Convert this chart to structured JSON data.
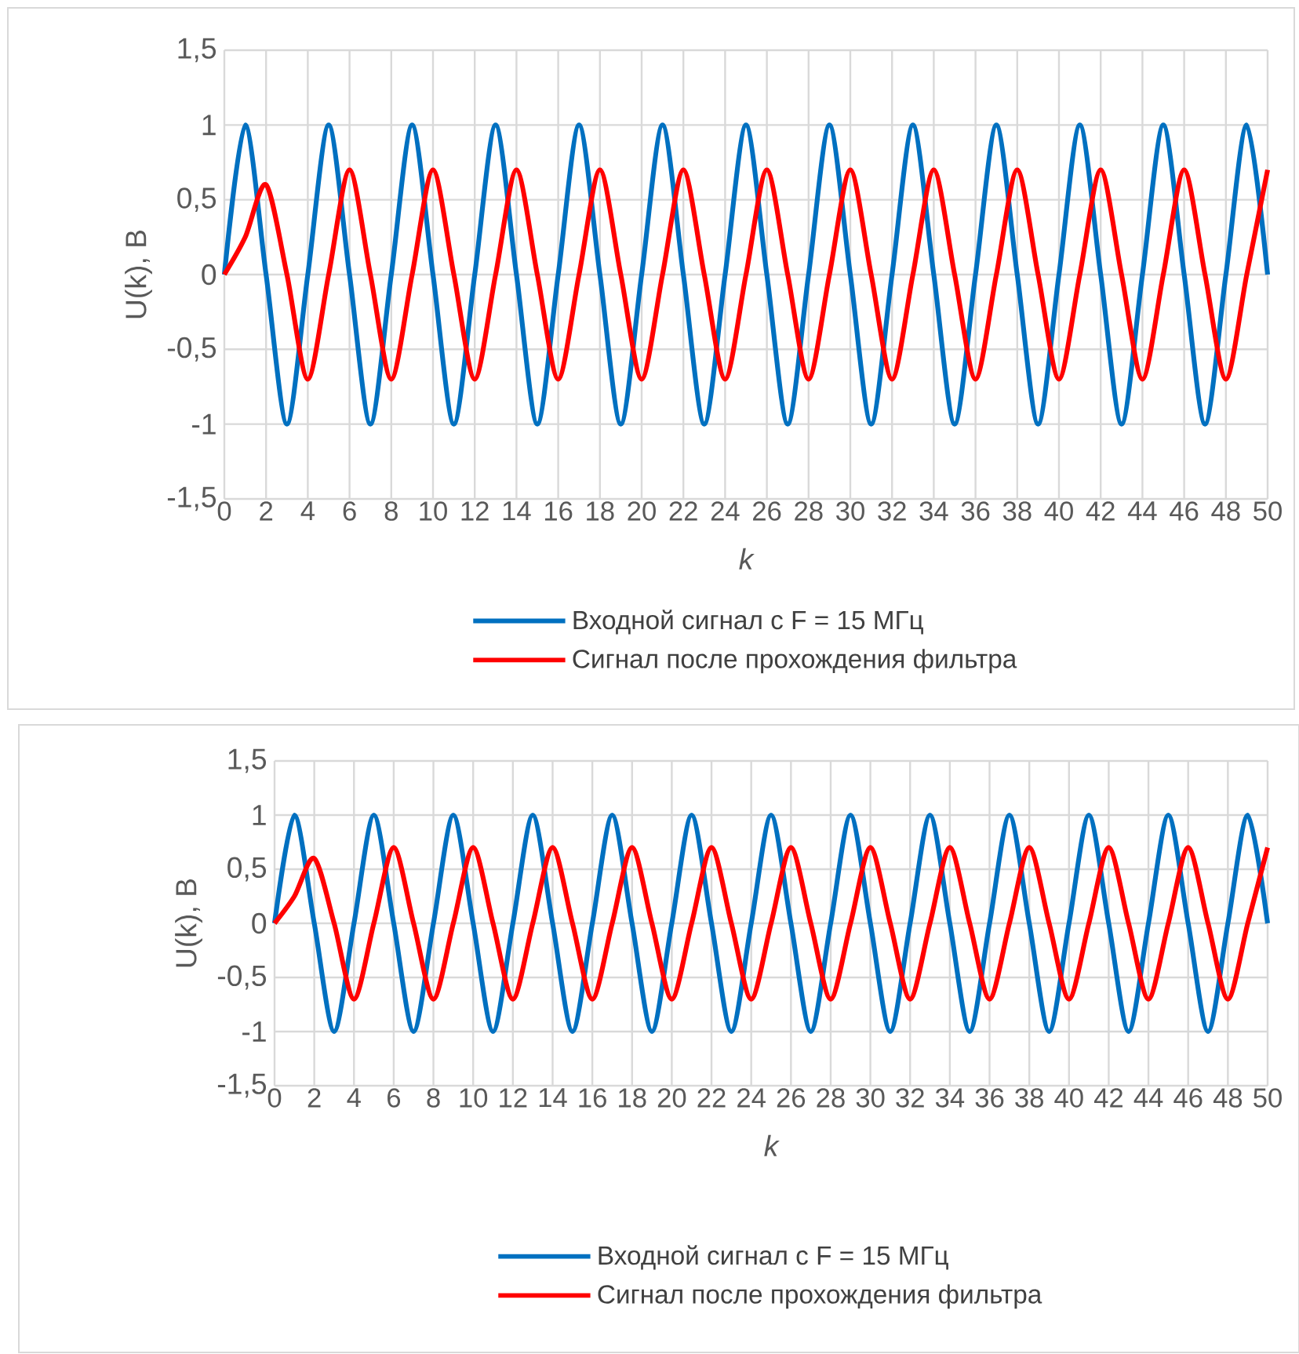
{
  "chart_data": [
    {
      "type": "line",
      "xlabel": "k",
      "ylabel": "U(k), В",
      "legend": "bottom",
      "grid": true,
      "line_style": "solid",
      "marker": "none",
      "x": [
        0,
        1,
        2,
        3,
        4,
        5,
        6,
        7,
        8,
        9,
        10,
        11,
        12,
        13,
        14,
        15,
        16,
        17,
        18,
        19,
        20,
        21,
        22,
        23,
        24,
        25,
        26,
        27,
        28,
        29,
        30,
        31,
        32,
        33,
        34,
        35,
        36,
        37,
        38,
        39,
        40,
        41,
        42,
        43,
        44,
        45,
        46,
        47,
        48,
        49,
        50
      ],
      "xlim": [
        0,
        50
      ],
      "xticks": [
        0,
        2,
        4,
        6,
        8,
        10,
        12,
        14,
        16,
        18,
        20,
        22,
        24,
        26,
        28,
        30,
        32,
        34,
        36,
        38,
        40,
        42,
        44,
        46,
        48,
        50
      ],
      "ylim": [
        -1.5,
        1.5
      ],
      "yticks": [
        {
          "value": -1.5,
          "label": "-1,5"
        },
        -1,
        {
          "value": -0.5,
          "label": "-0,5"
        },
        0,
        {
          "value": 0.5,
          "label": "0,5"
        },
        1,
        {
          "value": 1.5,
          "label": "1,5"
        }
      ],
      "series": [
        {
          "name": "Входной сигнал с F = 15 МГц",
          "color": "#0070c0",
          "values": [
            0,
            1,
            0,
            -1,
            0,
            1,
            0,
            -1,
            0,
            1,
            0,
            -1,
            0,
            1,
            0,
            -1,
            0,
            1,
            0,
            -1,
            0,
            1,
            0,
            -1,
            0,
            1,
            0,
            -1,
            0,
            1,
            0,
            -1,
            0,
            1,
            0,
            -1,
            0,
            1,
            0,
            -1,
            0,
            1,
            0,
            -1,
            0,
            1,
            0,
            -1,
            0,
            1,
            0
          ]
        },
        {
          "name": "Сигнал после прохождения фильтра",
          "color": "#ff0000",
          "values": [
            0,
            0.25,
            0.6,
            0,
            -0.7,
            0,
            0.7,
            0,
            -0.7,
            0,
            0.7,
            0,
            -0.7,
            0,
            0.7,
            0,
            -0.7,
            0,
            0.7,
            0,
            -0.7,
            0,
            0.7,
            0,
            -0.7,
            0,
            0.7,
            0,
            -0.7,
            0,
            0.7,
            0,
            -0.7,
            0,
            0.7,
            0,
            -0.7,
            0,
            0.7,
            0,
            -0.7,
            0,
            0.7,
            0,
            -0.7,
            0,
            0.7,
            0,
            -0.7,
            0,
            0.7
          ]
        }
      ]
    },
    {
      "type": "line",
      "xlabel": "k",
      "ylabel": "U(k), В",
      "legend": "bottom",
      "grid": true,
      "line_style": "solid",
      "marker": "none",
      "x": [
        0,
        1,
        2,
        3,
        4,
        5,
        6,
        7,
        8,
        9,
        10,
        11,
        12,
        13,
        14,
        15,
        16,
        17,
        18,
        19,
        20,
        21,
        22,
        23,
        24,
        25,
        26,
        27,
        28,
        29,
        30,
        31,
        32,
        33,
        34,
        35,
        36,
        37,
        38,
        39,
        40,
        41,
        42,
        43,
        44,
        45,
        46,
        47,
        48,
        49,
        50
      ],
      "xlim": [
        0,
        50
      ],
      "xticks": [
        0,
        2,
        4,
        6,
        8,
        10,
        12,
        14,
        16,
        18,
        20,
        22,
        24,
        26,
        28,
        30,
        32,
        34,
        36,
        38,
        40,
        42,
        44,
        46,
        48,
        50
      ],
      "ylim": [
        -1.5,
        1.5
      ],
      "yticks": [
        {
          "value": -1.5,
          "label": "-1,5"
        },
        -1,
        {
          "value": -0.5,
          "label": "-0,5"
        },
        0,
        {
          "value": 0.5,
          "label": "0,5"
        },
        1,
        {
          "value": 1.5,
          "label": "1,5"
        }
      ],
      "series": [
        {
          "name": "Входной сигнал с F = 15 МГц",
          "color": "#0070c0",
          "values": [
            0,
            1,
            0,
            -1,
            0,
            1,
            0,
            -1,
            0,
            1,
            0,
            -1,
            0,
            1,
            0,
            -1,
            0,
            1,
            0,
            -1,
            0,
            1,
            0,
            -1,
            0,
            1,
            0,
            -1,
            0,
            1,
            0,
            -1,
            0,
            1,
            0,
            -1,
            0,
            1,
            0,
            -1,
            0,
            1,
            0,
            -1,
            0,
            1,
            0,
            -1,
            0,
            1,
            0
          ]
        },
        {
          "name": "Сигнал после прохождения фильтра",
          "color": "#ff0000",
          "values": [
            0,
            0.25,
            0.6,
            0,
            -0.7,
            0,
            0.7,
            0,
            -0.7,
            0,
            0.7,
            0,
            -0.7,
            0,
            0.7,
            0,
            -0.7,
            0,
            0.7,
            0,
            -0.7,
            0,
            0.7,
            0,
            -0.7,
            0,
            0.7,
            0,
            -0.7,
            0,
            0.7,
            0,
            -0.7,
            0,
            0.7,
            0,
            -0.7,
            0,
            0.7,
            0,
            -0.7,
            0,
            0.7,
            0,
            -0.7,
            0,
            0.7,
            0,
            -0.7,
            0,
            0.7
          ]
        }
      ]
    }
  ]
}
